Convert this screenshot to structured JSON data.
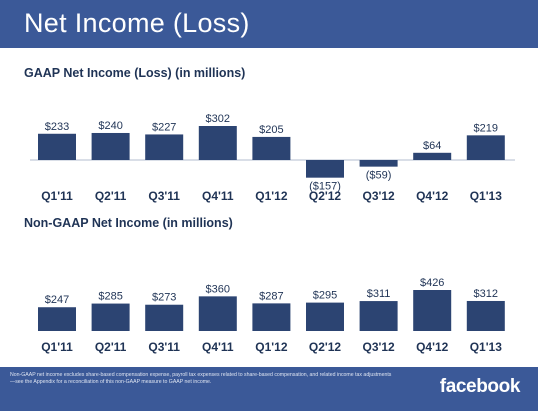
{
  "slide": {
    "title": "Net Income (Loss)",
    "footnote": "Non-GAAP net income excludes share-based compensation expense, payroll tax expenses related to share-based compensation, and related income tax adjustments—see the Appendix for a reconciliation of this non-GAAP measure to GAAP net income.",
    "brand": "facebook"
  },
  "colors": {
    "header_bar": "#3b5998",
    "bar": "#2c4472",
    "text": "#1f3355"
  },
  "chart_data": [
    {
      "type": "bar",
      "title": "GAAP Net Income (Loss) (in millions)",
      "categories": [
        "Q1'11",
        "Q2'11",
        "Q3'11",
        "Q4'11",
        "Q1'12",
        "Q2'12",
        "Q3'12",
        "Q4'12",
        "Q1'13"
      ],
      "values": [
        233,
        240,
        227,
        302,
        205,
        -157,
        -59,
        64,
        219
      ],
      "data_labels": [
        "$233",
        "$240",
        "$227",
        "$302",
        "$205",
        "($157)",
        "($59)",
        "$64",
        "$219"
      ],
      "xlabel": "",
      "ylabel": "",
      "ylim": [
        -160,
        310
      ],
      "grid": false,
      "legend": "none"
    },
    {
      "type": "bar",
      "title": "Non-GAAP Net Income (in millions)",
      "categories": [
        "Q1'11",
        "Q2'11",
        "Q3'11",
        "Q4'11",
        "Q1'12",
        "Q2'12",
        "Q3'12",
        "Q4'12",
        "Q1'13"
      ],
      "values": [
        247,
        285,
        273,
        360,
        287,
        295,
        311,
        426,
        312
      ],
      "data_labels": [
        "$247",
        "$285",
        "$273",
        "$360",
        "$287",
        "$295",
        "$311",
        "$426",
        "$312"
      ],
      "xlabel": "",
      "ylabel": "",
      "ylim": [
        0,
        430
      ],
      "grid": false,
      "legend": "none"
    }
  ]
}
